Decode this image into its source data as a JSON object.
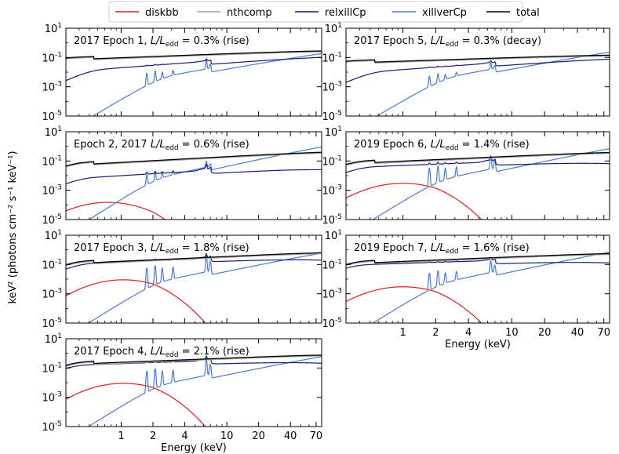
{
  "figure": {
    "ylabel": "keV² (photons cm⁻² s⁻¹ keV⁻¹)",
    "xlabel": "Energy (keV)"
  },
  "legend": [
    {
      "name": "diskbb",
      "color": "#e8191c"
    },
    {
      "name": "nthcomp",
      "color": "#a0a0a0"
    },
    {
      "name": "relxillCp",
      "color": "#141c7c"
    },
    {
      "name": "xillverCp",
      "color": "#4b78d8"
    },
    {
      "name": "total",
      "color": "#000000"
    }
  ],
  "chart_data": [
    {
      "type": "line",
      "id": "p1",
      "title": "2017 Epoch 1, L/L_edd = 0.3% (rise)",
      "title_parts": [
        "2017 Epoch 1, ",
        "L/L",
        "edd",
        " = 0.3% (rise)"
      ],
      "xscale": "log",
      "yscale": "log",
      "xlim": [
        0.3,
        79
      ],
      "ylim": [
        1e-05,
        10
      ],
      "xticks": [
        1,
        2,
        4,
        10,
        20,
        40,
        70
      ],
      "yticks": [
        1e-05,
        0.001,
        0.1,
        10
      ],
      "ytick_labels": [
        [
          "10",
          "-5"
        ],
        [
          "10",
          "-3"
        ],
        [
          "10",
          "-1"
        ],
        [
          "10",
          "1"
        ]
      ],
      "xlabel": "",
      "components": {
        "diskbb": null,
        "nthcomp": {
          "a": 0.12,
          "b": 0.28,
          "ec": 500,
          "cut": 0.22
        },
        "total": {
          "a": 0.12,
          "b": 0.28,
          "ec": 500,
          "cut": 0.22,
          "mult": 1.15
        },
        "relxillCp": {
          "a": 0.02,
          "b": 0.55,
          "ec": 300,
          "cut": 0.45,
          "fe": 0.01
        },
        "xillverCp": {
          "a": 0.0015,
          "b": 1.3,
          "ec": 300,
          "cut": 2.2,
          "fe": 0.012
        }
      }
    },
    {
      "type": "line",
      "id": "p2",
      "title": "Epoch 2, 2017 L/L_edd = 0.6% (rise)",
      "title_parts": [
        "Epoch 2, 2017 ",
        "L/L",
        "edd",
        " = 0.6% (rise)"
      ],
      "xscale": "log",
      "yscale": "log",
      "xlim": [
        0.3,
        79
      ],
      "ylim": [
        1e-05,
        10
      ],
      "xticks": [
        1,
        2,
        4,
        10,
        20,
        40,
        70
      ],
      "yticks": [
        1e-05,
        0.001,
        0.1,
        10
      ],
      "ytick_labels": [
        [
          "10",
          "-5"
        ],
        [
          "10",
          "-3"
        ],
        [
          "10",
          "-1"
        ],
        [
          "10",
          "1"
        ]
      ],
      "xlabel": "",
      "components": {
        "diskbb": {
          "peak": 0.00015,
          "e0": 0.75,
          "w": 1.6
        },
        "nthcomp": {
          "a": 0.1,
          "b": 0.4,
          "ec": 500,
          "cut": 0.3
        },
        "total": {
          "a": 0.1,
          "b": 0.4,
          "ec": 500,
          "cut": 0.3,
          "mult": 1.15
        },
        "relxillCp": {
          "a": 0.01,
          "b": 0.45,
          "ec": 150,
          "cut": 0.35,
          "fe": 0.015
        },
        "xillverCp": {
          "a": 0.002,
          "b": 1.6,
          "ec": 300,
          "cut": 2.0,
          "fe": 0.015
        }
      }
    },
    {
      "type": "line",
      "id": "p3",
      "title": "2017 Epoch 3, L/L_edd = 1.8% (rise)",
      "title_parts": [
        "2017 Epoch 3, ",
        "L/L",
        "edd",
        " = 1.8% (rise)"
      ],
      "xscale": "log",
      "yscale": "log",
      "xlim": [
        0.3,
        79
      ],
      "ylim": [
        1e-05,
        10
      ],
      "xticks": [
        1,
        2,
        4,
        10,
        20,
        40,
        70
      ],
      "yticks": [
        1e-05,
        0.001,
        0.1,
        10
      ],
      "ytick_labels": [
        [
          "10",
          "-5"
        ],
        [
          "10",
          "-3"
        ],
        [
          "10",
          "-1"
        ],
        [
          "10",
          "1"
        ]
      ],
      "xlabel": "",
      "components": {
        "diskbb": {
          "peak": 0.009,
          "e0": 1.05,
          "w": 1.3
        },
        "nthcomp": {
          "a": 0.2,
          "b": 0.35,
          "ec": 500,
          "cut": 0.3
        },
        "total": {
          "a": 0.2,
          "b": 0.35,
          "ec": 500,
          "cut": 0.3,
          "mult": 1.15
        },
        "relxillCp": {
          "a": 0.15,
          "b": 0.3,
          "ec": 150,
          "cut": 0.35,
          "fe": 0.12
        },
        "xillverCp": {
          "a": 0.002,
          "b": 1.5,
          "ec": 300,
          "cut": 2.0,
          "fe": 0.09
        }
      }
    },
    {
      "type": "line",
      "id": "p4",
      "title": "2017 Epoch 4, L/L_edd = 2.1% (rise)",
      "title_parts": [
        "2017 Epoch 4, ",
        "L/L",
        "edd",
        " = 2.1% (rise)"
      ],
      "xscale": "log",
      "yscale": "log",
      "xlim": [
        0.3,
        79
      ],
      "ylim": [
        1e-05,
        10
      ],
      "xticks": [
        1,
        2,
        4,
        10,
        20,
        40,
        70
      ],
      "yticks": [
        1e-05,
        0.001,
        0.1,
        10
      ],
      "ytick_labels": [
        [
          "10",
          "-5"
        ],
        [
          "10",
          "-3"
        ],
        [
          "10",
          "-1"
        ],
        [
          "10",
          "1"
        ]
      ],
      "xlabel": "Energy (keV)",
      "components": {
        "diskbb": {
          "peak": 0.009,
          "e0": 1.05,
          "w": 1.2
        },
        "nthcomp": {
          "a": 0.3,
          "b": 0.3,
          "ec": 500,
          "cut": 0.3
        },
        "total": {
          "a": 0.3,
          "b": 0.3,
          "ec": 500,
          "cut": 0.3,
          "mult": 1.15
        },
        "relxillCp": {
          "a": 0.2,
          "b": 0.25,
          "ec": 150,
          "cut": 0.3,
          "fe": 0.15
        },
        "xillverCp": {
          "a": 0.002,
          "b": 1.5,
          "ec": 300,
          "cut": 2.0,
          "fe": 0.1
        }
      }
    },
    {
      "type": "line",
      "id": "p5",
      "title": "2017 Epoch 5, L/L_edd = 0.3% (decay)",
      "title_parts": [
        "2017 Epoch 5, ",
        "L/L",
        "edd",
        " = 0.3% (decay)"
      ],
      "xscale": "log",
      "yscale": "log",
      "xlim": [
        0.3,
        79
      ],
      "ylim": [
        1e-05,
        10
      ],
      "xticks": [
        1,
        2,
        4,
        10,
        20,
        40,
        70
      ],
      "yticks": [
        1e-05,
        0.001,
        0.1,
        10
      ],
      "ytick_labels": [
        [
          "10",
          "-5"
        ],
        [
          "10",
          "-3"
        ],
        [
          "10",
          "-1"
        ],
        [
          "10",
          "1"
        ]
      ],
      "xlabel": "",
      "components": {
        "diskbb": null,
        "nthcomp": {
          "a": 0.07,
          "b": 0.25,
          "ec": 500,
          "cut": 0.22
        },
        "total": {
          "a": 0.07,
          "b": 0.25,
          "ec": 500,
          "cut": 0.22,
          "mult": 1.15
        },
        "relxillCp": {
          "a": 0.015,
          "b": 0.55,
          "ec": 300,
          "cut": 0.45,
          "fe": 0.008
        },
        "xillverCp": {
          "a": 0.0012,
          "b": 1.4,
          "ec": 300,
          "cut": 2.2,
          "fe": 0.007
        }
      }
    },
    {
      "type": "line",
      "id": "p6",
      "title": "2019 Epoch 6, L/L_edd = 1.4% (rise)",
      "title_parts": [
        "2019 Epoch 6, ",
        "L/L",
        "edd",
        " = 1.4% (rise)"
      ],
      "xscale": "log",
      "yscale": "log",
      "xlim": [
        0.3,
        79
      ],
      "ylim": [
        1e-05,
        10
      ],
      "xticks": [
        1,
        2,
        4,
        10,
        20,
        40,
        70
      ],
      "yticks": [
        1e-05,
        0.001,
        0.1,
        10
      ],
      "ytick_labels": [
        [
          "10",
          "-5"
        ],
        [
          "10",
          "-3"
        ],
        [
          "10",
          "-1"
        ],
        [
          "10",
          "1"
        ]
      ],
      "xlabel": "",
      "components": {
        "diskbb": {
          "peak": 0.003,
          "e0": 1.0,
          "w": 1.3
        },
        "nthcomp": {
          "a": 0.12,
          "b": 0.35,
          "ec": 500,
          "cut": 0.3
        },
        "total": {
          "a": 0.12,
          "b": 0.35,
          "ec": 500,
          "cut": 0.3,
          "mult": 1.15
        },
        "relxillCp": {
          "a": 0.05,
          "b": 0.3,
          "ec": 150,
          "cut": 0.35,
          "fe": 0.05
        },
        "xillverCp": {
          "a": 0.0015,
          "b": 1.6,
          "ec": 300,
          "cut": 2.0,
          "fe": 0.05
        }
      }
    },
    {
      "type": "line",
      "id": "p7",
      "title": "2019 Epoch 7, L/L_edd = 1.6% (rise)",
      "title_parts": [
        "2019 Epoch 7, ",
        "L/L",
        "edd",
        " = 1.6% (rise)"
      ],
      "xscale": "log",
      "yscale": "log",
      "xlim": [
        0.3,
        79
      ],
      "ylim": [
        1e-05,
        10
      ],
      "xticks": [
        1,
        2,
        4,
        10,
        20,
        40,
        70
      ],
      "yticks": [
        1e-05,
        0.001,
        0.1,
        10
      ],
      "ytick_labels": [
        [
          "10",
          "-5"
        ],
        [
          "10",
          "-3"
        ],
        [
          "10",
          "-1"
        ],
        [
          "10",
          "1"
        ]
      ],
      "xlabel": "Energy (keV)",
      "components": {
        "diskbb": {
          "peak": 0.003,
          "e0": 1.0,
          "w": 1.3
        },
        "nthcomp": {
          "a": 0.2,
          "b": 0.32,
          "ec": 500,
          "cut": 0.3
        },
        "total": {
          "a": 0.2,
          "b": 0.32,
          "ec": 500,
          "cut": 0.3,
          "mult": 1.15
        },
        "relxillCp": {
          "a": 0.12,
          "b": 0.25,
          "ec": 150,
          "cut": 0.3,
          "fe": 0.05
        },
        "xillverCp": {
          "a": 0.0015,
          "b": 1.6,
          "ec": 300,
          "cut": 2.0,
          "fe": 0.04
        }
      }
    }
  ]
}
